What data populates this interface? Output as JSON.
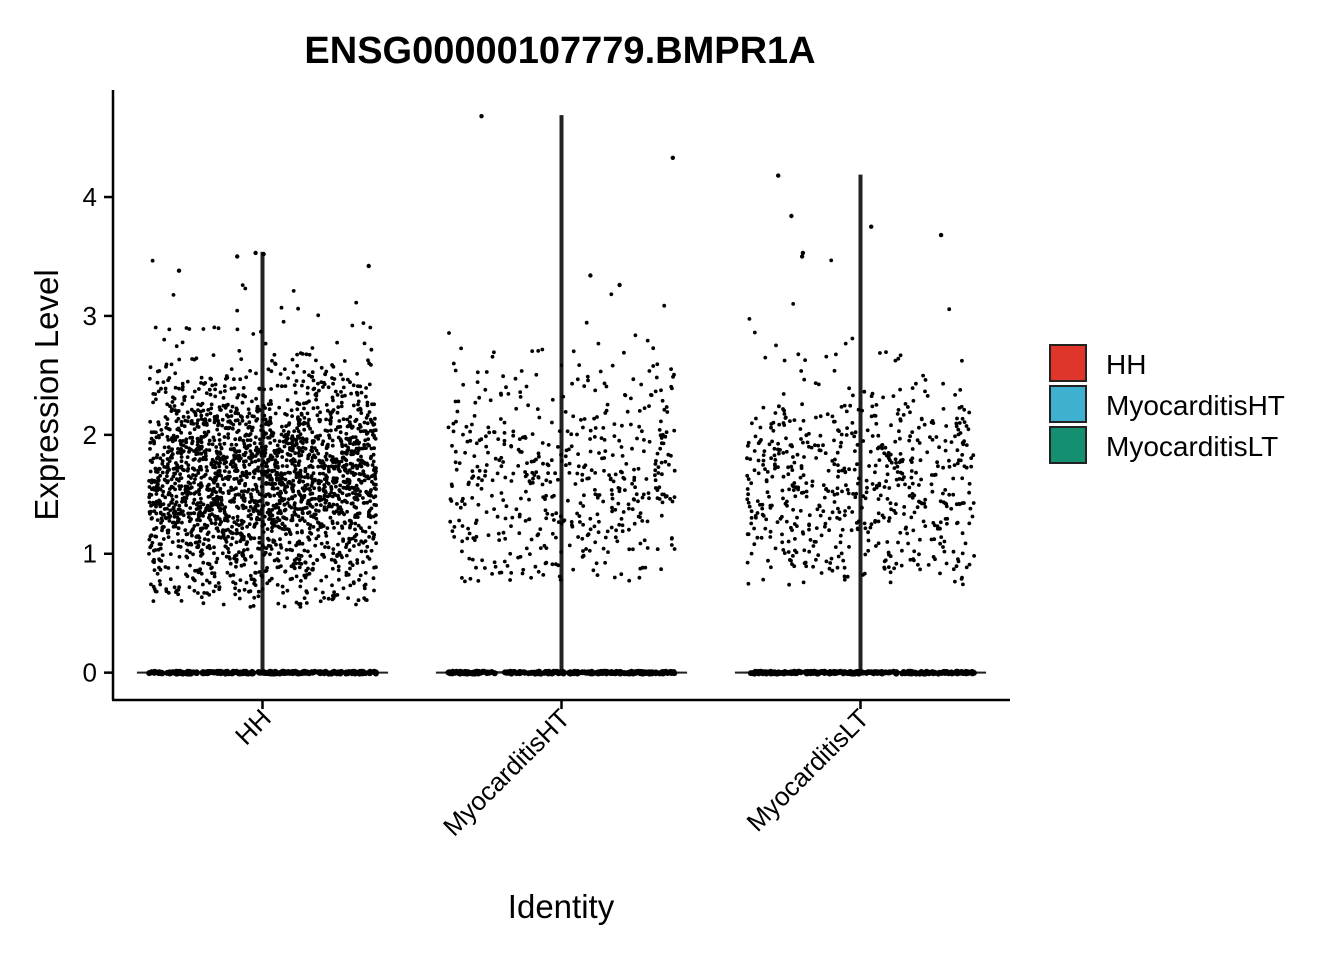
{
  "chart_data": {
    "type": "violin",
    "title": "ENSG00000107779.BMPR1A",
    "xlabel": "Identity",
    "ylabel": "Expression Level",
    "categories": [
      "HH",
      "MyocarditisHT",
      "MyocarditisLT"
    ],
    "ylim": [
      -0.23,
      4.9
    ],
    "yticks": [
      0,
      1,
      2,
      3,
      4
    ],
    "grid": false,
    "legend_position": "right",
    "legend": [
      {
        "label": "HH",
        "color": "#E0352B"
      },
      {
        "label": "MyocarditisHT",
        "color": "#40B0D0"
      },
      {
        "label": "MyocarditisLT",
        "color": "#149070"
      }
    ],
    "series": [
      {
        "name": "HH",
        "max": 3.53,
        "nonzero_points": 2400,
        "nonzero_range": [
          0.55,
          3.5
        ],
        "nonzero_center": 1.6
      },
      {
        "name": "MyocarditisHT",
        "max": 4.68,
        "nonzero_points": 520,
        "nonzero_range": [
          0.75,
          3.3
        ],
        "nonzero_center": 1.65
      },
      {
        "name": "MyocarditisLT",
        "max": 4.18,
        "nonzero_points": 640,
        "nonzero_range": [
          0.72,
          3.75
        ],
        "nonzero_center": 1.6
      }
    ],
    "outliers": [
      {
        "category": "HH",
        "y": 3.53
      },
      {
        "category": "HH",
        "y": 3.52
      },
      {
        "category": "HH",
        "y": 3.5
      },
      {
        "category": "HH",
        "y": 3.42
      },
      {
        "category": "HH",
        "y": 3.38
      },
      {
        "category": "MyocarditisHT",
        "y": 4.68
      },
      {
        "category": "MyocarditisHT",
        "y": 4.33
      },
      {
        "category": "MyocarditisHT",
        "y": 3.34
      },
      {
        "category": "MyocarditisHT",
        "y": 3.26
      },
      {
        "category": "MyocarditisLT",
        "y": 4.18
      },
      {
        "category": "MyocarditisLT",
        "y": 3.84
      },
      {
        "category": "MyocarditisLT",
        "y": 3.75
      },
      {
        "category": "MyocarditisLT",
        "y": 3.68
      },
      {
        "category": "MyocarditisLT",
        "y": 3.53
      },
      {
        "category": "MyocarditisLT",
        "y": 3.5
      }
    ]
  }
}
